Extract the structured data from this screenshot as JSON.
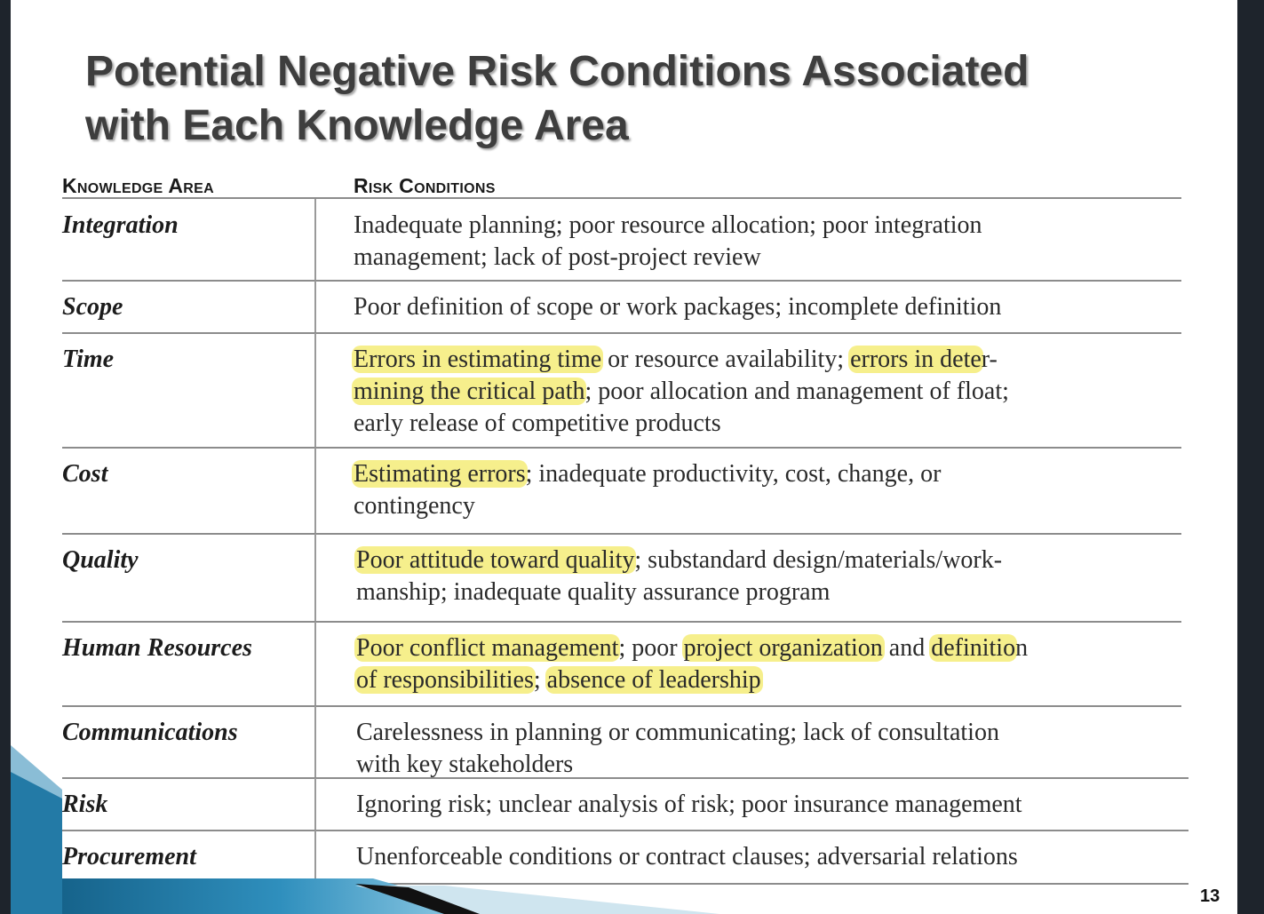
{
  "slide": {
    "title_line1": "Potential Negative Risk Conditions Associated",
    "title_line2": "with Each Knowledge Area",
    "page_number": "13",
    "accent_color": "#1c6f98",
    "highlight_color": "#f6ef8c"
  },
  "table": {
    "headers": {
      "knowledge_area": "Knowledge Area",
      "risk_conditions": "Risk Conditions"
    },
    "rows": [
      {
        "area": "Integration",
        "lines": [
          [
            {
              "t": "Inadequate planning; poor resource allocation; poor integration"
            }
          ],
          [
            {
              "t": "management; lack of post-project review"
            }
          ]
        ]
      },
      {
        "area": "Scope",
        "lines": [
          [
            {
              "t": "Poor definition of scope or work packages; incomplete definition"
            }
          ]
        ]
      },
      {
        "area": "Time",
        "lines": [
          [
            {
              "t": "Errors in estimating time",
              "hl": true
            },
            {
              "t": " or resource availability; "
            },
            {
              "t": "errors in dete",
              "hl": true
            },
            {
              "t": "r-"
            }
          ],
          [
            {
              "t": "mining the critical path",
              "hl": true
            },
            {
              "t": "; poor allocation and management of float;"
            }
          ],
          [
            {
              "t": "early release of competitive products"
            }
          ]
        ]
      },
      {
        "area": "Cost",
        "lines": [
          [
            {
              "t": "Estimating errors",
              "hl": true
            },
            {
              "t": "; inadequate productivity, cost, change, or"
            }
          ],
          [
            {
              "t": "contingency"
            }
          ]
        ]
      },
      {
        "area": "Quality",
        "lines": [
          [
            {
              "t": "Poor attitude toward quality",
              "hl": true
            },
            {
              "t": "; substandard design/materials/work-"
            }
          ],
          [
            {
              "t": "manship; inadequate quality assurance program"
            }
          ]
        ]
      },
      {
        "area": "Human Resources",
        "lines": [
          [
            {
              "t": "Poor conflict management",
              "hl": true
            },
            {
              "t": "; poor "
            },
            {
              "t": "project organization",
              "hl": true
            },
            {
              "t": " and "
            },
            {
              "t": "definitio",
              "hl": true
            },
            {
              "t": "n"
            }
          ],
          [
            {
              "t": "of responsibilities",
              "hl": true
            },
            {
              "t": "; "
            },
            {
              "t": "absence of leadership",
              "hl": true
            }
          ]
        ]
      },
      {
        "area": "Communications",
        "lines": [
          [
            {
              "t": "Carelessness in planning or communicating; lack of consultation"
            }
          ],
          [
            {
              "t": "with key stakeholders"
            }
          ]
        ]
      },
      {
        "area": "Risk",
        "lines": [
          [
            {
              "t": "Ignoring risk; unclear analysis of risk; poor insurance management"
            }
          ]
        ]
      },
      {
        "area": "Procurement",
        "lines": [
          [
            {
              "t": "Unenforceable conditions or contract clauses; adversarial relations"
            }
          ]
        ]
      }
    ]
  }
}
